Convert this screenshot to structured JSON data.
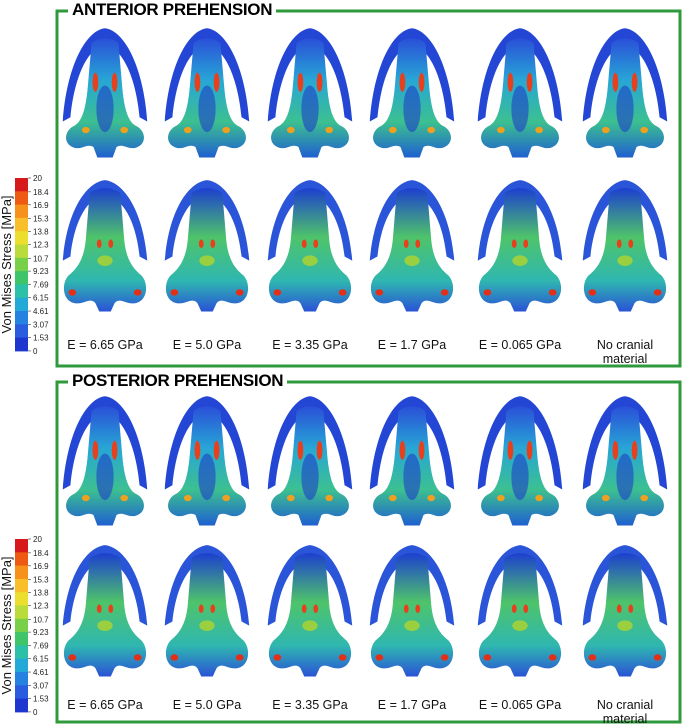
{
  "panels": [
    {
      "title": "ANTERIOR PREHENSION",
      "labels": [
        "E = 6.65 GPa",
        "E = 5.0 GPa",
        "E = 3.35 GPa",
        "E = 1.7 GPa",
        "E = 0.065 GPa",
        "No cranial material"
      ],
      "colorbar": {
        "label": "Von Mises Stress [MPa]",
        "ticks": [
          20,
          18.4,
          16.9,
          15.3,
          13.8,
          12.3,
          10.7,
          9.23,
          7.69,
          6.15,
          4.61,
          3.07,
          1.53,
          0
        ]
      }
    },
    {
      "title": "POSTERIOR PREHENSION",
      "labels": [
        "E = 6.65 GPa",
        "E = 5.0 GPa",
        "E = 3.35 GPa",
        "E = 1.7 GPa",
        "E = 0.065 GPa",
        "No cranial material"
      ],
      "colorbar": {
        "label": "Von Mises Stress [MPa]",
        "ticks": [
          20,
          18.4,
          16.9,
          15.3,
          13.8,
          12.3,
          10.7,
          9.23,
          7.69,
          6.15,
          4.61,
          3.07,
          1.53,
          0
        ]
      }
    }
  ]
}
